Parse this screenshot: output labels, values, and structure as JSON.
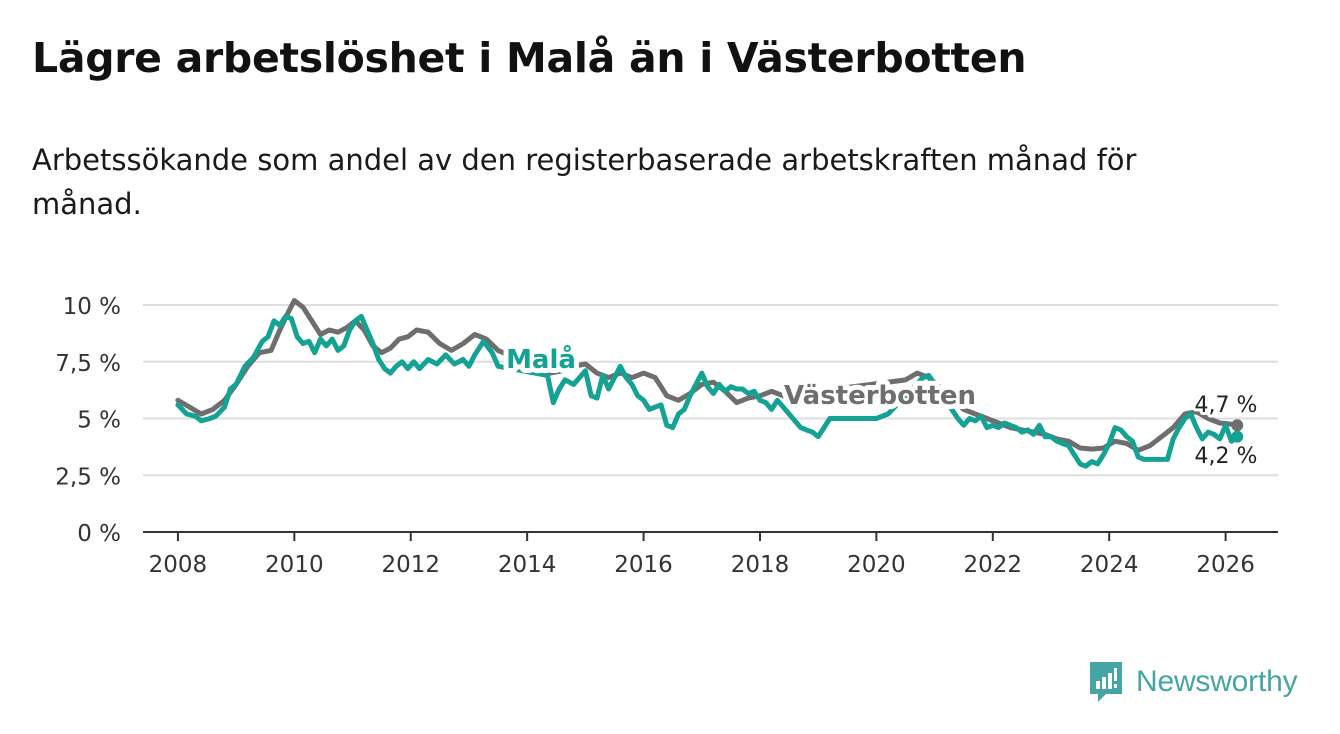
{
  "header": {
    "title": "Lägre arbetslöshet i Malå än i Västerbotten",
    "subtitle": "Arbetssökande som andel av den registerbaserade arbetskraften månad för månad."
  },
  "brand": {
    "name": "Newsworthy",
    "color": "#45a5a5"
  },
  "chart_data": {
    "type": "line",
    "title": "Lägre arbetslöshet i Malå än i Västerbotten",
    "xlabel": "",
    "ylabel": "",
    "xlim": [
      2007.4,
      2026.9
    ],
    "ylim": [
      0,
      10
    ],
    "y_ticks": [
      0,
      2.5,
      5,
      7.5,
      10
    ],
    "y_tick_labels": [
      "0 %",
      "2,5 %",
      "5 %",
      "7,5 %",
      "10 %"
    ],
    "x_ticks": [
      2008,
      2010,
      2012,
      2014,
      2016,
      2018,
      2020,
      2022,
      2024,
      2026
    ],
    "x_tick_labels": [
      "2008",
      "2010",
      "2012",
      "2014",
      "2016",
      "2018",
      "2020",
      "2022",
      "2024",
      "2026"
    ],
    "grid": true,
    "series": [
      {
        "name": "Västerbotten",
        "color": "#6e6e6e",
        "label": "Västerbotten",
        "end_label": "4,7 %",
        "points": [
          [
            2008.0,
            5.8
          ],
          [
            2008.2,
            5.5
          ],
          [
            2008.4,
            5.2
          ],
          [
            2008.6,
            5.4
          ],
          [
            2008.8,
            5.8
          ],
          [
            2009.0,
            6.5
          ],
          [
            2009.2,
            7.3
          ],
          [
            2009.4,
            7.9
          ],
          [
            2009.6,
            8.0
          ],
          [
            2009.75,
            8.9
          ],
          [
            2009.9,
            9.7
          ],
          [
            2010.0,
            10.2
          ],
          [
            2010.15,
            9.9
          ],
          [
            2010.3,
            9.3
          ],
          [
            2010.45,
            8.7
          ],
          [
            2010.6,
            8.9
          ],
          [
            2010.75,
            8.8
          ],
          [
            2010.9,
            9.0
          ],
          [
            2011.05,
            9.3
          ],
          [
            2011.2,
            8.9
          ],
          [
            2011.35,
            8.2
          ],
          [
            2011.5,
            7.9
          ],
          [
            2011.65,
            8.1
          ],
          [
            2011.8,
            8.5
          ],
          [
            2011.95,
            8.6
          ],
          [
            2012.1,
            8.9
          ],
          [
            2012.3,
            8.8
          ],
          [
            2012.5,
            8.3
          ],
          [
            2012.7,
            8.0
          ],
          [
            2012.9,
            8.3
          ],
          [
            2013.1,
            8.7
          ],
          [
            2013.3,
            8.5
          ],
          [
            2013.5,
            8.0
          ],
          [
            2014.4,
            7.0
          ],
          [
            2014.6,
            7.1
          ],
          [
            2014.8,
            7.3
          ],
          [
            2015.0,
            7.4
          ],
          [
            2015.2,
            7.0
          ],
          [
            2015.4,
            6.8
          ],
          [
            2015.6,
            7.0
          ],
          [
            2015.8,
            6.8
          ],
          [
            2016.0,
            7.0
          ],
          [
            2016.2,
            6.8
          ],
          [
            2016.4,
            6.0
          ],
          [
            2016.6,
            5.8
          ],
          [
            2016.8,
            6.1
          ],
          [
            2017.0,
            6.5
          ],
          [
            2017.2,
            6.6
          ],
          [
            2017.4,
            6.2
          ],
          [
            2017.6,
            5.7
          ],
          [
            2017.8,
            5.9
          ],
          [
            2018.0,
            6.0
          ],
          [
            2018.2,
            6.2
          ],
          [
            2018.4,
            6.0
          ],
          [
            2020.5,
            6.7
          ],
          [
            2020.7,
            7.0
          ],
          [
            2020.9,
            6.8
          ],
          [
            2021.5,
            5.4
          ],
          [
            2021.7,
            5.2
          ],
          [
            2021.9,
            5.0
          ],
          [
            2022.1,
            4.8
          ],
          [
            2022.3,
            4.6
          ],
          [
            2022.5,
            4.5
          ],
          [
            2022.7,
            4.4
          ],
          [
            2022.9,
            4.3
          ],
          [
            2023.1,
            4.1
          ],
          [
            2023.3,
            4.0
          ],
          [
            2023.5,
            3.7
          ],
          [
            2023.7,
            3.65
          ],
          [
            2023.9,
            3.7
          ],
          [
            2024.1,
            4.0
          ],
          [
            2024.3,
            3.9
          ],
          [
            2024.5,
            3.6
          ],
          [
            2024.7,
            3.8
          ],
          [
            2024.9,
            4.2
          ],
          [
            2025.1,
            4.6
          ],
          [
            2025.3,
            5.2
          ],
          [
            2025.5,
            5.3
          ],
          [
            2025.7,
            5.0
          ],
          [
            2025.9,
            4.8
          ],
          [
            2026.1,
            4.75
          ],
          [
            2026.2,
            4.7
          ]
        ]
      },
      {
        "name": "Malå",
        "color": "#13a293",
        "label": "Malå",
        "end_label": "4,2 %",
        "points": [
          [
            2008.0,
            5.6
          ],
          [
            2008.15,
            5.2
          ],
          [
            2008.3,
            5.1
          ],
          [
            2008.4,
            4.9
          ],
          [
            2008.55,
            5.0
          ],
          [
            2008.65,
            5.1
          ],
          [
            2008.8,
            5.5
          ],
          [
            2008.9,
            6.3
          ],
          [
            2009.0,
            6.5
          ],
          [
            2009.15,
            7.3
          ],
          [
            2009.3,
            7.7
          ],
          [
            2009.45,
            8.4
          ],
          [
            2009.55,
            8.6
          ],
          [
            2009.65,
            9.3
          ],
          [
            2009.75,
            9.1
          ],
          [
            2009.85,
            9.5
          ],
          [
            2009.95,
            9.4
          ],
          [
            2010.05,
            8.6
          ],
          [
            2010.15,
            8.3
          ],
          [
            2010.25,
            8.4
          ],
          [
            2010.35,
            7.9
          ],
          [
            2010.45,
            8.5
          ],
          [
            2010.55,
            8.2
          ],
          [
            2010.65,
            8.5
          ],
          [
            2010.75,
            8.0
          ],
          [
            2010.85,
            8.2
          ],
          [
            2010.95,
            8.9
          ],
          [
            2011.05,
            9.3
          ],
          [
            2011.15,
            9.5
          ],
          [
            2011.25,
            8.9
          ],
          [
            2011.35,
            8.3
          ],
          [
            2011.45,
            7.6
          ],
          [
            2011.55,
            7.2
          ],
          [
            2011.65,
            7.0
          ],
          [
            2011.75,
            7.3
          ],
          [
            2011.85,
            7.5
          ],
          [
            2011.95,
            7.2
          ],
          [
            2012.05,
            7.5
          ],
          [
            2012.15,
            7.2
          ],
          [
            2012.3,
            7.6
          ],
          [
            2012.45,
            7.4
          ],
          [
            2012.6,
            7.8
          ],
          [
            2012.75,
            7.4
          ],
          [
            2012.9,
            7.6
          ],
          [
            2013.0,
            7.3
          ],
          [
            2013.1,
            7.8
          ],
          [
            2013.25,
            8.4
          ],
          [
            2013.4,
            7.9
          ],
          [
            2013.5,
            7.3
          ],
          [
            2014.35,
            6.9
          ],
          [
            2014.45,
            5.7
          ],
          [
            2014.55,
            6.3
          ],
          [
            2014.65,
            6.7
          ],
          [
            2014.8,
            6.5
          ],
          [
            2014.9,
            6.8
          ],
          [
            2015.0,
            7.1
          ],
          [
            2015.1,
            6.0
          ],
          [
            2015.2,
            5.9
          ],
          [
            2015.3,
            6.9
          ],
          [
            2015.4,
            6.3
          ],
          [
            2015.5,
            6.8
          ],
          [
            2015.6,
            7.3
          ],
          [
            2015.7,
            6.8
          ],
          [
            2015.8,
            6.5
          ],
          [
            2015.9,
            6.0
          ],
          [
            2016.0,
            5.8
          ],
          [
            2016.1,
            5.4
          ],
          [
            2016.2,
            5.5
          ],
          [
            2016.3,
            5.6
          ],
          [
            2016.4,
            4.7
          ],
          [
            2016.5,
            4.6
          ],
          [
            2016.6,
            5.2
          ],
          [
            2016.7,
            5.4
          ],
          [
            2016.8,
            6.0
          ],
          [
            2016.9,
            6.5
          ],
          [
            2017.0,
            7.0
          ],
          [
            2017.1,
            6.4
          ],
          [
            2017.2,
            6.1
          ],
          [
            2017.3,
            6.5
          ],
          [
            2017.4,
            6.2
          ],
          [
            2017.5,
            6.4
          ],
          [
            2017.6,
            6.3
          ],
          [
            2017.7,
            6.3
          ],
          [
            2017.8,
            6.1
          ],
          [
            2017.9,
            6.2
          ],
          [
            2018.0,
            5.8
          ],
          [
            2018.1,
            5.7
          ],
          [
            2018.2,
            5.4
          ],
          [
            2018.3,
            5.8
          ],
          [
            2018.7,
            4.6
          ],
          [
            2018.8,
            4.5
          ],
          [
            2018.9,
            4.4
          ],
          [
            2019.0,
            4.2
          ],
          [
            2019.1,
            4.6
          ],
          [
            2019.2,
            5.0
          ],
          [
            2020.0,
            5.0
          ],
          [
            2020.2,
            5.2
          ],
          [
            2020.8,
            6.8
          ],
          [
            2020.9,
            6.9
          ],
          [
            2021.4,
            5.0
          ],
          [
            2021.5,
            4.7
          ],
          [
            2021.6,
            5.0
          ],
          [
            2021.7,
            4.9
          ],
          [
            2021.8,
            5.1
          ],
          [
            2021.9,
            4.6
          ],
          [
            2022.0,
            4.7
          ],
          [
            2022.1,
            4.6
          ],
          [
            2022.2,
            4.8
          ],
          [
            2022.3,
            4.7
          ],
          [
            2022.4,
            4.6
          ],
          [
            2022.5,
            4.4
          ],
          [
            2022.6,
            4.5
          ],
          [
            2022.7,
            4.3
          ],
          [
            2022.8,
            4.7
          ],
          [
            2022.9,
            4.2
          ],
          [
            2023.0,
            4.2
          ],
          [
            2023.1,
            4.0
          ],
          [
            2023.2,
            3.9
          ],
          [
            2023.3,
            3.8
          ],
          [
            2023.4,
            3.4
          ],
          [
            2023.5,
            3.0
          ],
          [
            2023.6,
            2.9
          ],
          [
            2023.7,
            3.1
          ],
          [
            2023.8,
            3.0
          ],
          [
            2023.9,
            3.4
          ],
          [
            2024.0,
            3.9
          ],
          [
            2024.1,
            4.6
          ],
          [
            2024.2,
            4.5
          ],
          [
            2024.3,
            4.2
          ],
          [
            2024.4,
            4.0
          ],
          [
            2024.5,
            3.3
          ],
          [
            2024.6,
            3.2
          ],
          [
            2024.8,
            3.2
          ],
          [
            2024.9,
            3.2
          ],
          [
            2025.0,
            3.2
          ],
          [
            2025.1,
            4.1
          ],
          [
            2025.2,
            4.6
          ],
          [
            2025.3,
            5.0
          ],
          [
            2025.4,
            5.2
          ],
          [
            2025.5,
            4.6
          ],
          [
            2025.6,
            4.1
          ],
          [
            2025.7,
            4.4
          ],
          [
            2025.8,
            4.3
          ],
          [
            2025.9,
            4.1
          ],
          [
            2026.0,
            4.7
          ],
          [
            2026.1,
            4.0
          ],
          [
            2026.2,
            4.2
          ]
        ]
      }
    ]
  }
}
